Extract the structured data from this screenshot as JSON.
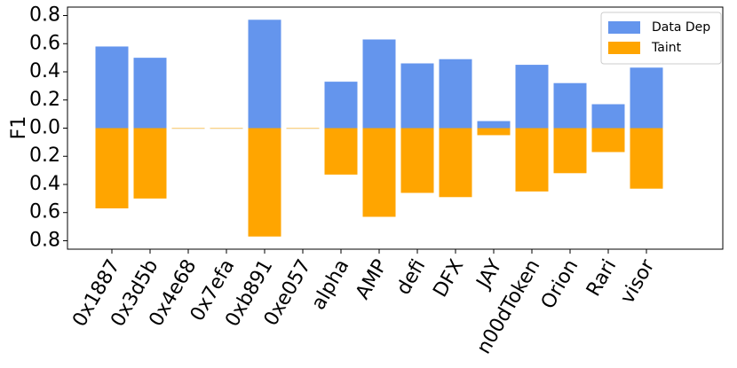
{
  "chart_data": {
    "type": "bar",
    "y_label": "F1",
    "categories": [
      "0x1887",
      "0x3d5b",
      "0x4e68",
      "0x7efa",
      "0xb891",
      "0xe057",
      "alpha",
      "AMP",
      "defi",
      "DFX",
      "JAY",
      "n00dToken",
      "Orion",
      "Rari",
      "visor"
    ],
    "series": [
      {
        "name": "Data Dep",
        "color": "#6495ed",
        "values": [
          0.58,
          0.5,
          0,
          0,
          0.77,
          0,
          0.33,
          0.63,
          0.46,
          0.49,
          0.05,
          0.45,
          0.32,
          0.17,
          0.43
        ]
      },
      {
        "name": "Taint",
        "color": "#ffa500",
        "values": [
          -0.57,
          -0.5,
          0,
          0,
          -0.77,
          0,
          -0.33,
          -0.63,
          -0.46,
          -0.49,
          -0.05,
          -0.45,
          -0.32,
          -0.17,
          -0.43
        ]
      }
    ],
    "ylim": [
      -0.86,
      0.86
    ],
    "yticks": [
      {
        "value": -0.8,
        "label": "0.8"
      },
      {
        "value": -0.6,
        "label": "0.6"
      },
      {
        "value": -0.4,
        "label": "0.4"
      },
      {
        "value": -0.2,
        "label": "0.2"
      },
      {
        "value": 0,
        "label": "0.0"
      },
      0.2,
      0.4,
      0.6,
      0.8
    ],
    "legend": "upper right"
  }
}
